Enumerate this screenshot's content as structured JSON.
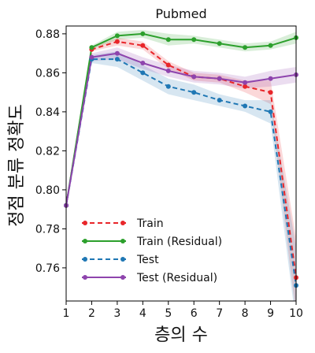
{
  "chart_data": {
    "type": "line",
    "title": "Pubmed",
    "xlabel": "층의 수",
    "ylabel": "정점 분류 정확도",
    "x": [
      1,
      2,
      3,
      4,
      5,
      6,
      7,
      8,
      9,
      10
    ],
    "xlim": [
      1,
      10
    ],
    "ylim": [
      0.743,
      0.884
    ],
    "y_ticks": [
      0.76,
      0.78,
      0.8,
      0.82,
      0.84,
      0.86,
      0.88
    ],
    "y_tick_labels": [
      "0.76",
      "0.78",
      "0.80",
      "0.82",
      "0.84",
      "0.86",
      "0.88"
    ],
    "x_tick_labels": [
      "1",
      "2",
      "3",
      "4",
      "5",
      "6",
      "7",
      "8",
      "9",
      "10"
    ],
    "grid": false,
    "legend_position": "lower-left",
    "series": [
      {
        "name": "Train",
        "color": "#e8262a",
        "style": "dashed",
        "values": [
          0.792,
          0.872,
          0.876,
          0.874,
          0.864,
          0.858,
          0.857,
          0.853,
          0.85,
          0.755
        ],
        "band": [
          0.0,
          0.001,
          0.002,
          0.002,
          0.002,
          0.002,
          0.002,
          0.003,
          0.006,
          0.02
        ]
      },
      {
        "name": "Train (Residual)",
        "color": "#2ca02c",
        "style": "solid",
        "values": [
          0.792,
          0.873,
          0.879,
          0.88,
          0.877,
          0.877,
          0.875,
          0.873,
          0.874,
          0.878
        ],
        "band": [
          0.0,
          0.001,
          0.002,
          0.002,
          0.003,
          0.002,
          0.002,
          0.002,
          0.002,
          0.003
        ]
      },
      {
        "name": "Test",
        "color": "#1f77b4",
        "style": "dashed",
        "values": [
          0.792,
          0.867,
          0.867,
          0.86,
          0.853,
          0.85,
          0.846,
          0.843,
          0.84,
          0.751
        ],
        "band": [
          0.0,
          0.002,
          0.004,
          0.004,
          0.004,
          0.004,
          0.003,
          0.003,
          0.006,
          0.02
        ]
      },
      {
        "name": "Test (Residual)",
        "color": "#8e44ad",
        "style": "solid",
        "values": [
          0.792,
          0.868,
          0.87,
          0.865,
          0.861,
          0.858,
          0.857,
          0.855,
          0.857,
          0.859
        ],
        "band": [
          0.0,
          0.002,
          0.003,
          0.003,
          0.003,
          0.003,
          0.003,
          0.003,
          0.004,
          0.004
        ]
      }
    ]
  }
}
